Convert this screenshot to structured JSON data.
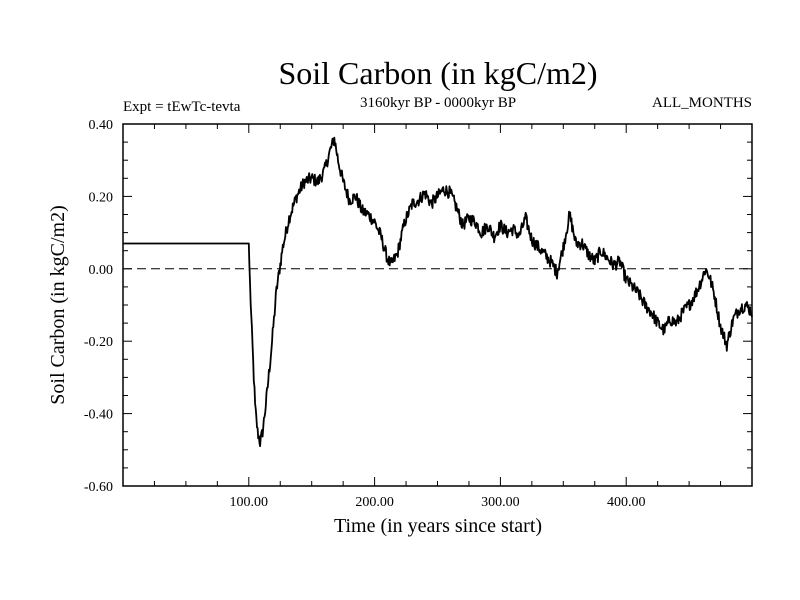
{
  "chart_data": {
    "type": "line",
    "title": "Soil Carbon (in kgC/m2)",
    "subtitle": "3160kyr BP - 0000kyr BP",
    "left_note": "Expt = tEwTc-tevta",
    "right_note": "ALL_MONTHS",
    "xlabel": "Time (in years since start)",
    "ylabel": "Soil Carbon (in kgC/m2)",
    "xlim": [
      0,
      500
    ],
    "ylim": [
      -0.6,
      0.4
    ],
    "x_ticks": [
      100,
      200,
      300,
      400
    ],
    "x_tick_labels": [
      "100.00",
      "200.00",
      "300.00",
      "400.00"
    ],
    "y_ticks": [
      -0.6,
      -0.4,
      -0.2,
      0.0,
      0.2,
      0.4
    ],
    "y_tick_labels": [
      "-0.60",
      "-0.40",
      "-0.20",
      "0.00",
      "0.20",
      "0.40"
    ],
    "reference_line": {
      "y": 0.0,
      "style": "dashed"
    },
    "series": [
      {
        "name": "Soil Carbon",
        "x": [
          0,
          100,
          101,
          103,
          105,
          107,
          109,
          111,
          114,
          118,
          122,
          127,
          132,
          138,
          144,
          150,
          155,
          160,
          165,
          168,
          171,
          175,
          180,
          185,
          190,
          195,
          200,
          205,
          210,
          213,
          218,
          224,
          230,
          235,
          240,
          245,
          250,
          255,
          260,
          265,
          270,
          275,
          280,
          285,
          290,
          295,
          300,
          305,
          310,
          315,
          320,
          325,
          330,
          335,
          340,
          345,
          350,
          355,
          360,
          365,
          370,
          375,
          380,
          385,
          390,
          395,
          400,
          405,
          410,
          415,
          420,
          425,
          430,
          435,
          440,
          445,
          450,
          455,
          460,
          463,
          466,
          470,
          475,
          480,
          485,
          490,
          495,
          500
        ],
        "y": [
          0.07,
          0.07,
          -0.05,
          -0.22,
          -0.38,
          -0.45,
          -0.48,
          -0.45,
          -0.36,
          -0.22,
          -0.06,
          0.06,
          0.14,
          0.2,
          0.24,
          0.25,
          0.24,
          0.27,
          0.33,
          0.36,
          0.3,
          0.24,
          0.19,
          0.2,
          0.16,
          0.15,
          0.13,
          0.09,
          0.03,
          0.01,
          0.04,
          0.13,
          0.18,
          0.19,
          0.21,
          0.18,
          0.2,
          0.22,
          0.21,
          0.17,
          0.12,
          0.14,
          0.13,
          0.1,
          0.12,
          0.09,
          0.12,
          0.1,
          0.11,
          0.09,
          0.14,
          0.08,
          0.06,
          0.04,
          0.02,
          -0.01,
          0.06,
          0.15,
          0.07,
          0.07,
          0.04,
          0.02,
          0.05,
          0.03,
          0.01,
          0.02,
          -0.03,
          -0.05,
          -0.07,
          -0.1,
          -0.12,
          -0.15,
          -0.17,
          -0.14,
          -0.15,
          -0.12,
          -0.1,
          -0.07,
          -0.03,
          0.0,
          -0.02,
          -0.07,
          -0.16,
          -0.21,
          -0.14,
          -0.11,
          -0.1,
          -0.12
        ]
      }
    ]
  }
}
